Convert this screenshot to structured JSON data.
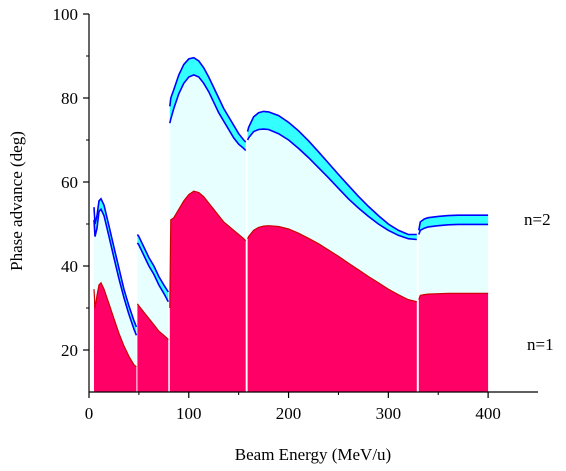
{
  "chart_data": {
    "type": "area",
    "xlabel": "Beam Energy (MeV/u)",
    "ylabel": "Phase advance (deg)",
    "xlim": [
      0,
      450
    ],
    "ylim": [
      10,
      100
    ],
    "xticks": [
      0,
      100,
      200,
      300,
      400
    ],
    "xtick_labels": [
      "0",
      "100",
      "200",
      "300",
      "400"
    ],
    "yticks": [
      20,
      40,
      60,
      80,
      100
    ],
    "ytick_labels": [
      "20",
      "40",
      "60",
      "80",
      "100"
    ],
    "grid": false,
    "colors": {
      "n1_fill": "#ff0066",
      "n1_edge": "#cc0000",
      "n2_fill": "#33ffff",
      "n2_edge": "#0000ff",
      "gap": "#ccffff"
    },
    "annotations": [
      "n=2",
      "n=1"
    ],
    "series": [
      {
        "name": "n=1",
        "segments": [
          {
            "x": [
              5,
              6,
              8,
              10,
              12,
              15,
              20,
              25,
              30,
              35,
              40,
              45,
              47.5
            ],
            "upper": [
              34.5,
              30,
              33,
              35.5,
              36,
              34.5,
              31,
              27.5,
              24,
              21,
              18.5,
              16.5,
              16
            ],
            "lower": [
              10,
              10,
              10,
              10,
              10,
              10,
              10,
              10,
              10,
              10,
              10,
              10,
              10
            ]
          },
          {
            "x": [
              48.5,
              50,
              55,
              60,
              65,
              70,
              75,
              79.5
            ],
            "upper": [
              31,
              30.5,
              29,
              27.5,
              26,
              24.5,
              23.5,
              22.5
            ],
            "lower": [
              10,
              10,
              10,
              10,
              10,
              10,
              10,
              10
            ]
          },
          {
            "x": [
              81,
              82,
              85,
              90,
              95,
              100,
              105,
              110,
              115,
              120,
              125,
              130,
              135,
              140,
              145,
              150,
              155,
              157
            ],
            "upper": [
              30,
              51,
              51.5,
              53.5,
              55.5,
              57,
              57.8,
              57.5,
              56.5,
              55,
              53.5,
              52,
              50.5,
              49.5,
              48.5,
              47.5,
              46.5,
              46
            ],
            "lower": [
              10,
              10,
              10,
              10,
              10,
              10,
              10,
              10,
              10,
              10,
              10,
              10,
              10,
              10,
              10,
              10,
              10,
              10
            ]
          },
          {
            "x": [
              159,
              160,
              165,
              170,
              175,
              180,
              190,
              200,
              210,
              220,
              230,
              240,
              250,
              260,
              270,
              280,
              290,
              300,
              310,
              320,
              328.5
            ],
            "upper": [
              46.5,
              47,
              48.5,
              49.2,
              49.5,
              49.6,
              49.4,
              48.8,
              47.8,
              46.6,
              45.3,
              43.8,
              42.3,
              40.7,
              39.1,
              37.5,
              36,
              34.5,
              33.2,
              32,
              31.5
            ],
            "lower": [
              10,
              10,
              10,
              10,
              10,
              10,
              10,
              10,
              10,
              10,
              10,
              10,
              10,
              10,
              10,
              10,
              10,
              10,
              10,
              10,
              10
            ]
          },
          {
            "x": [
              330.5,
              332,
              336,
              340,
              350,
              360,
              370,
              380,
              390,
              400
            ],
            "upper": [
              32,
              33,
              33.2,
              33.3,
              33.4,
              33.5,
              33.5,
              33.5,
              33.5,
              33.5
            ],
            "lower": [
              10,
              10,
              10,
              10,
              10,
              10,
              10,
              10,
              10,
              10
            ]
          }
        ]
      },
      {
        "name": "n=2",
        "segments": [
          {
            "x": [
              5,
              6,
              8,
              10,
              12,
              15,
              20,
              25,
              30,
              35,
              40,
              45,
              47.5
            ],
            "upper": [
              54,
              50,
              52,
              55.5,
              56,
              54.5,
              49.5,
              44.5,
              39.5,
              34.5,
              30.5,
              27,
              25.5
            ],
            "lower": [
              51,
              47,
              49,
              53,
              53.5,
              52,
              47,
              42,
              37,
              32.5,
              28.5,
              25,
              23.5
            ]
          },
          {
            "x": [
              48.5,
              50,
              55,
              60,
              65,
              70,
              75,
              79.5
            ],
            "upper": [
              47.5,
              47,
              44.5,
              42,
              40,
              37.5,
              35.5,
              33.8
            ],
            "lower": [
              45.5,
              45,
              42.5,
              40,
              38,
              35.5,
              33.5,
              31.5
            ]
          },
          {
            "x": [
              81,
              82,
              85,
              90,
              95,
              100,
              105,
              110,
              115,
              120,
              125,
              130,
              135,
              140,
              145,
              150,
              155,
              157
            ],
            "upper": [
              78,
              80,
              82,
              85.5,
              88,
              89.3,
              89.6,
              88.8,
              87.2,
              85,
              82.5,
              80,
              77.5,
              75.5,
              73.5,
              71.5,
              70,
              69.5
            ],
            "lower": [
              74,
              75,
              77.5,
              81,
              83.5,
              85,
              85.5,
              85,
              83.5,
              81.5,
              79,
              76.5,
              74.5,
              72.5,
              70.5,
              69,
              68,
              67.5
            ]
          },
          {
            "x": [
              159,
              160,
              165,
              170,
              175,
              180,
              190,
              200,
              210,
              220,
              230,
              240,
              250,
              260,
              270,
              280,
              290,
              300,
              310,
              320,
              328.5
            ],
            "upper": [
              72,
              73,
              75.5,
              76.5,
              76.8,
              76.7,
              75.8,
              74.2,
              72.2,
              69.8,
              67.2,
              64.5,
              61.8,
              59.2,
              56.6,
              54.2,
              52,
              50,
              48.5,
              47.5,
              47.5
            ],
            "lower": [
              70,
              70.5,
              72,
              72.5,
              72.6,
              72.5,
              71.5,
              70,
              68,
              65.8,
              63.4,
              61,
              58.5,
              56,
              53.8,
              51.8,
              50,
              48.5,
              47.3,
              46.5,
              46.3
            ]
          },
          {
            "x": [
              330.5,
              332,
              336,
              340,
              350,
              360,
              370,
              380,
              390,
              400
            ],
            "upper": [
              48.5,
              50.5,
              51.2,
              51.5,
              51.8,
              52,
              52.1,
              52.1,
              52.1,
              52.1
            ],
            "lower": [
              47.5,
              48.5,
              49,
              49.3,
              49.6,
              49.8,
              49.9,
              49.9,
              49.9,
              49.9
            ]
          }
        ]
      }
    ]
  }
}
